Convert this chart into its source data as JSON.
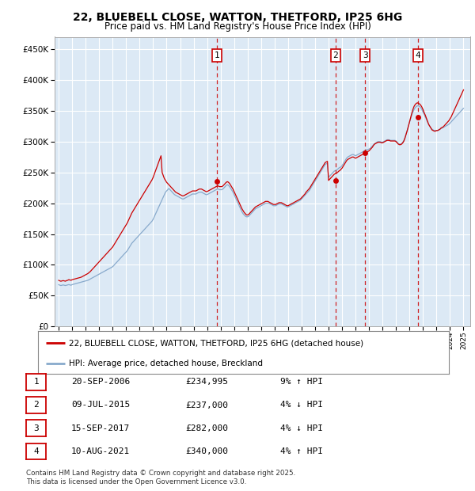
{
  "title_line1": "22, BLUEBELL CLOSE, WATTON, THETFORD, IP25 6HG",
  "title_line2": "Price paid vs. HM Land Registry's House Price Index (HPI)",
  "background_color": "#dce9f5",
  "line_color_red": "#cc0000",
  "line_color_blue": "#88aacc",
  "legend_label_red": "22, BLUEBELL CLOSE, WATTON, THETFORD, IP25 6HG (detached house)",
  "legend_label_blue": "HPI: Average price, detached house, Breckland",
  "sale_markers": [
    {
      "num": 1,
      "x_year": 2006.72,
      "price": 234995
    },
    {
      "num": 2,
      "x_year": 2015.52,
      "price": 237000
    },
    {
      "num": 3,
      "x_year": 2017.71,
      "price": 282000
    },
    {
      "num": 4,
      "x_year": 2021.61,
      "price": 340000
    }
  ],
  "table_rows": [
    {
      "num": 1,
      "date": "20-SEP-2006",
      "price": "£234,995",
      "pct": "9% ↑ HPI"
    },
    {
      "num": 2,
      "date": "09-JUL-2015",
      "price": "£237,000",
      "pct": "4% ↓ HPI"
    },
    {
      "num": 3,
      "date": "15-SEP-2017",
      "price": "£282,000",
      "pct": "4% ↓ HPI"
    },
    {
      "num": 4,
      "date": "10-AUG-2021",
      "price": "£340,000",
      "pct": "4% ↑ HPI"
    }
  ],
  "footer_text": "Contains HM Land Registry data © Crown copyright and database right 2025.\nThis data is licensed under the Open Government Licence v3.0.",
  "ylim": [
    0,
    470000
  ],
  "yticks": [
    0,
    50000,
    100000,
    150000,
    200000,
    250000,
    300000,
    350000,
    400000,
    450000
  ],
  "xlim_left": 1994.7,
  "xlim_right": 2025.5,
  "hpi_months": [
    1995.0,
    1995.083,
    1995.167,
    1995.25,
    1995.333,
    1995.417,
    1995.5,
    1995.583,
    1995.667,
    1995.75,
    1995.833,
    1995.917,
    1996.0,
    1996.083,
    1996.167,
    1996.25,
    1996.333,
    1996.417,
    1996.5,
    1996.583,
    1996.667,
    1996.75,
    1996.833,
    1996.917,
    1997.0,
    1997.083,
    1997.167,
    1997.25,
    1997.333,
    1997.417,
    1997.5,
    1997.583,
    1997.667,
    1997.75,
    1997.833,
    1997.917,
    1998.0,
    1998.083,
    1998.167,
    1998.25,
    1998.333,
    1998.417,
    1998.5,
    1998.583,
    1998.667,
    1998.75,
    1998.833,
    1998.917,
    1999.0,
    1999.083,
    1999.167,
    1999.25,
    1999.333,
    1999.417,
    1999.5,
    1999.583,
    1999.667,
    1999.75,
    1999.833,
    1999.917,
    2000.0,
    2000.083,
    2000.167,
    2000.25,
    2000.333,
    2000.417,
    2000.5,
    2000.583,
    2000.667,
    2000.75,
    2000.833,
    2000.917,
    2001.0,
    2001.083,
    2001.167,
    2001.25,
    2001.333,
    2001.417,
    2001.5,
    2001.583,
    2001.667,
    2001.75,
    2001.833,
    2001.917,
    2002.0,
    2002.083,
    2002.167,
    2002.25,
    2002.333,
    2002.417,
    2002.5,
    2002.583,
    2002.667,
    2002.75,
    2002.833,
    2002.917,
    2003.0,
    2003.083,
    2003.167,
    2003.25,
    2003.333,
    2003.417,
    2003.5,
    2003.583,
    2003.667,
    2003.75,
    2003.833,
    2003.917,
    2004.0,
    2004.083,
    2004.167,
    2004.25,
    2004.333,
    2004.417,
    2004.5,
    2004.583,
    2004.667,
    2004.75,
    2004.833,
    2004.917,
    2005.0,
    2005.083,
    2005.167,
    2005.25,
    2005.333,
    2005.417,
    2005.5,
    2005.583,
    2005.667,
    2005.75,
    2005.833,
    2005.917,
    2006.0,
    2006.083,
    2006.167,
    2006.25,
    2006.333,
    2006.417,
    2006.5,
    2006.583,
    2006.667,
    2006.75,
    2006.833,
    2006.917,
    2007.0,
    2007.083,
    2007.167,
    2007.25,
    2007.333,
    2007.417,
    2007.5,
    2007.583,
    2007.667,
    2007.75,
    2007.833,
    2007.917,
    2008.0,
    2008.083,
    2008.167,
    2008.25,
    2008.333,
    2008.417,
    2008.5,
    2008.583,
    2008.667,
    2008.75,
    2008.833,
    2008.917,
    2009.0,
    2009.083,
    2009.167,
    2009.25,
    2009.333,
    2009.417,
    2009.5,
    2009.583,
    2009.667,
    2009.75,
    2009.833,
    2009.917,
    2010.0,
    2010.083,
    2010.167,
    2010.25,
    2010.333,
    2010.417,
    2010.5,
    2010.583,
    2010.667,
    2010.75,
    2010.833,
    2010.917,
    2011.0,
    2011.083,
    2011.167,
    2011.25,
    2011.333,
    2011.417,
    2011.5,
    2011.583,
    2011.667,
    2011.75,
    2011.833,
    2011.917,
    2012.0,
    2012.083,
    2012.167,
    2012.25,
    2012.333,
    2012.417,
    2012.5,
    2012.583,
    2012.667,
    2012.75,
    2012.833,
    2012.917,
    2013.0,
    2013.083,
    2013.167,
    2013.25,
    2013.333,
    2013.417,
    2013.5,
    2013.583,
    2013.667,
    2013.75,
    2013.833,
    2013.917,
    2014.0,
    2014.083,
    2014.167,
    2014.25,
    2014.333,
    2014.417,
    2014.5,
    2014.583,
    2014.667,
    2014.75,
    2014.833,
    2014.917,
    2015.0,
    2015.083,
    2015.167,
    2015.25,
    2015.333,
    2015.417,
    2015.5,
    2015.583,
    2015.667,
    2015.75,
    2015.833,
    2015.917,
    2016.0,
    2016.083,
    2016.167,
    2016.25,
    2016.333,
    2016.417,
    2016.5,
    2016.583,
    2016.667,
    2016.75,
    2016.833,
    2016.917,
    2017.0,
    2017.083,
    2017.167,
    2017.25,
    2017.333,
    2017.417,
    2017.5,
    2017.583,
    2017.667,
    2017.75,
    2017.833,
    2017.917,
    2018.0,
    2018.083,
    2018.167,
    2018.25,
    2018.333,
    2018.417,
    2018.5,
    2018.583,
    2018.667,
    2018.75,
    2018.833,
    2018.917,
    2019.0,
    2019.083,
    2019.167,
    2019.25,
    2019.333,
    2019.417,
    2019.5,
    2019.583,
    2019.667,
    2019.75,
    2019.833,
    2019.917,
    2020.0,
    2020.083,
    2020.167,
    2020.25,
    2020.333,
    2020.417,
    2020.5,
    2020.583,
    2020.667,
    2020.75,
    2020.833,
    2020.917,
    2021.0,
    2021.083,
    2021.167,
    2021.25,
    2021.333,
    2021.417,
    2021.5,
    2021.583,
    2021.667,
    2021.75,
    2021.833,
    2021.917,
    2022.0,
    2022.083,
    2022.167,
    2022.25,
    2022.333,
    2022.417,
    2022.5,
    2022.583,
    2022.667,
    2022.75,
    2022.833,
    2022.917,
    2023.0,
    2023.083,
    2023.167,
    2023.25,
    2023.333,
    2023.417,
    2023.5,
    2023.583,
    2023.667,
    2023.75,
    2023.833,
    2023.917,
    2024.0,
    2024.083,
    2024.167,
    2024.25,
    2024.333,
    2024.417,
    2024.5,
    2024.583,
    2024.667,
    2024.75,
    2024.833,
    2024.917,
    2025.0
  ],
  "hpi_vals": [
    68000,
    67000,
    66500,
    67000,
    67500,
    67000,
    66500,
    67000,
    67500,
    68000,
    67500,
    67000,
    68000,
    68500,
    69000,
    69500,
    70000,
    70500,
    71000,
    71500,
    72000,
    72500,
    73000,
    73500,
    74000,
    74500,
    75000,
    76000,
    77000,
    78000,
    79000,
    80000,
    81000,
    82000,
    83000,
    84000,
    85000,
    86000,
    87000,
    88000,
    89000,
    90000,
    91000,
    92000,
    93000,
    94000,
    95000,
    96000,
    97000,
    99000,
    101000,
    103000,
    105000,
    107000,
    109000,
    111000,
    113000,
    115000,
    117000,
    119000,
    121000,
    123000,
    126000,
    129000,
    132000,
    135000,
    137000,
    139000,
    141000,
    143000,
    145000,
    147000,
    149000,
    151000,
    153000,
    155000,
    157000,
    159000,
    161000,
    163000,
    165000,
    167000,
    169000,
    171000,
    174000,
    178000,
    182000,
    186000,
    190000,
    194000,
    198000,
    202000,
    206000,
    210000,
    214000,
    218000,
    220000,
    222000,
    224000,
    222000,
    220000,
    218000,
    216000,
    214000,
    213000,
    212000,
    211000,
    210000,
    209000,
    208000,
    207000,
    207000,
    208000,
    209000,
    210000,
    211000,
    212000,
    213000,
    214000,
    215000,
    215000,
    215000,
    215000,
    216000,
    217000,
    218000,
    218000,
    218000,
    217000,
    216000,
    215000,
    214000,
    214000,
    215000,
    216000,
    217000,
    218000,
    219000,
    220000,
    221000,
    222000,
    223000,
    223000,
    222000,
    222000,
    222000,
    223000,
    225000,
    227000,
    229000,
    230000,
    229000,
    227000,
    224000,
    221000,
    218000,
    214000,
    210000,
    206000,
    202000,
    198000,
    194000,
    190000,
    186000,
    183000,
    181000,
    179000,
    178000,
    178000,
    179000,
    181000,
    183000,
    185000,
    187000,
    189000,
    191000,
    192000,
    193000,
    194000,
    195000,
    196000,
    197000,
    198000,
    199000,
    200000,
    200000,
    200000,
    200000,
    199000,
    198000,
    197000,
    196000,
    196000,
    196000,
    197000,
    198000,
    199000,
    199000,
    199000,
    198000,
    197000,
    196000,
    195000,
    194000,
    194000,
    195000,
    196000,
    197000,
    198000,
    199000,
    200000,
    201000,
    202000,
    203000,
    204000,
    205000,
    207000,
    209000,
    211000,
    213000,
    215000,
    217000,
    219000,
    221000,
    224000,
    227000,
    230000,
    233000,
    236000,
    239000,
    242000,
    245000,
    248000,
    251000,
    254000,
    257000,
    260000,
    263000,
    264000,
    265000,
    242000,
    244000,
    246000,
    248000,
    250000,
    252000,
    253000,
    254000,
    255000,
    257000,
    258000,
    259000,
    261000,
    264000,
    267000,
    270000,
    273000,
    275000,
    276000,
    277000,
    278000,
    279000,
    279000,
    278000,
    277000,
    278000,
    279000,
    280000,
    281000,
    282000,
    283000,
    284000,
    285000,
    286000,
    287000,
    287000,
    288000,
    289000,
    291000,
    293000,
    295000,
    297000,
    298000,
    299000,
    300000,
    300000,
    300000,
    299000,
    299000,
    300000,
    301000,
    302000,
    303000,
    303000,
    303000,
    302000,
    302000,
    302000,
    302000,
    302000,
    301000,
    299000,
    297000,
    296000,
    296000,
    297000,
    299000,
    302000,
    307000,
    313000,
    319000,
    325000,
    331000,
    337000,
    343000,
    348000,
    352000,
    355000,
    357000,
    358000,
    358000,
    357000,
    355000,
    352000,
    348000,
    344000,
    340000,
    336000,
    332000,
    328000,
    325000,
    322000,
    320000,
    319000,
    318000,
    318000,
    318000,
    318000,
    319000,
    320000,
    321000,
    322000,
    323000,
    324000,
    325000,
    326000,
    327000,
    328000,
    330000,
    332000,
    334000,
    336000,
    338000,
    340000,
    342000,
    344000,
    346000,
    348000,
    350000,
    352000,
    354000
  ],
  "price_vals": [
    75000,
    74000,
    73500,
    74000,
    74500,
    74000,
    73500,
    74500,
    75000,
    76000,
    75500,
    75000,
    76000,
    76500,
    77000,
    77500,
    78000,
    78500,
    79000,
    79500,
    80000,
    81000,
    82000,
    83000,
    84000,
    85000,
    86000,
    87500,
    89000,
    91000,
    93000,
    95000,
    97000,
    99000,
    101000,
    103000,
    105000,
    107000,
    109000,
    111000,
    113000,
    115000,
    117000,
    119000,
    121000,
    123000,
    125000,
    127000,
    129000,
    132000,
    135000,
    138000,
    141000,
    144000,
    147000,
    150000,
    153000,
    156000,
    159000,
    162000,
    165000,
    168000,
    172000,
    176000,
    180000,
    184000,
    187000,
    190000,
    193000,
    196000,
    199000,
    202000,
    205000,
    208000,
    211000,
    214000,
    217000,
    220000,
    223000,
    226000,
    229000,
    232000,
    235000,
    238000,
    242000,
    247000,
    252000,
    257000,
    262000,
    267000,
    272000,
    277000,
    250000,
    245000,
    240000,
    237000,
    234000,
    232000,
    230000,
    228000,
    226000,
    224000,
    222000,
    220000,
    218000,
    217000,
    216000,
    215000,
    214000,
    213000,
    212000,
    212000,
    213000,
    214000,
    215000,
    216000,
    217000,
    218000,
    219000,
    220000,
    220000,
    220000,
    220000,
    221000,
    222000,
    223000,
    223000,
    223000,
    222000,
    221000,
    220000,
    219000,
    219000,
    220000,
    221000,
    222000,
    223000,
    224000,
    225000,
    226000,
    227000,
    228000,
    228000,
    227000,
    227000,
    227000,
    228000,
    230000,
    232000,
    234000,
    235000,
    234000,
    232000,
    229000,
    226000,
    223000,
    219000,
    215000,
    211000,
    207000,
    203000,
    199000,
    195000,
    191000,
    188000,
    185000,
    183000,
    181000,
    181000,
    182000,
    184000,
    186000,
    188000,
    190000,
    192000,
    194000,
    195000,
    196000,
    197000,
    198000,
    199000,
    200000,
    201000,
    202000,
    203000,
    203000,
    203000,
    202000,
    201000,
    200000,
    199000,
    198000,
    198000,
    198000,
    199000,
    200000,
    201000,
    201000,
    201000,
    200000,
    199000,
    198000,
    197000,
    196000,
    196000,
    197000,
    198000,
    199000,
    200000,
    201000,
    202000,
    203000,
    204000,
    205000,
    206000,
    207000,
    209000,
    211000,
    213000,
    215000,
    218000,
    220000,
    222000,
    224000,
    227000,
    230000,
    233000,
    236000,
    239000,
    242000,
    245000,
    248000,
    251000,
    254000,
    257000,
    260000,
    263000,
    266000,
    267000,
    268000,
    237000,
    239000,
    241000,
    243000,
    245000,
    247000,
    248000,
    249000,
    250000,
    252000,
    253000,
    255000,
    257000,
    260000,
    263000,
    266000,
    269000,
    271000,
    272000,
    273000,
    274000,
    275000,
    275000,
    274000,
    273000,
    274000,
    275000,
    276000,
    277000,
    278000,
    279000,
    280000,
    281000,
    282000,
    283000,
    284000,
    285000,
    287000,
    289000,
    291000,
    294000,
    296000,
    297000,
    298000,
    299000,
    299000,
    299000,
    298000,
    298000,
    299000,
    300000,
    301000,
    302000,
    302000,
    302000,
    301000,
    301000,
    301000,
    301000,
    301000,
    300000,
    298000,
    296000,
    295000,
    295000,
    296000,
    298000,
    301000,
    306000,
    312000,
    318000,
    325000,
    332000,
    339000,
    346000,
    352000,
    357000,
    360000,
    362000,
    363000,
    362000,
    361000,
    359000,
    356000,
    352000,
    347000,
    343000,
    338000,
    333000,
    328000,
    325000,
    322000,
    319000,
    318000,
    317000,
    317000,
    318000,
    318000,
    319000,
    320000,
    322000,
    323000,
    324000,
    326000,
    328000,
    330000,
    332000,
    334000,
    337000,
    340000,
    344000,
    348000,
    352000,
    356000,
    360000,
    364000,
    368000,
    372000,
    376000,
    380000,
    384000
  ]
}
